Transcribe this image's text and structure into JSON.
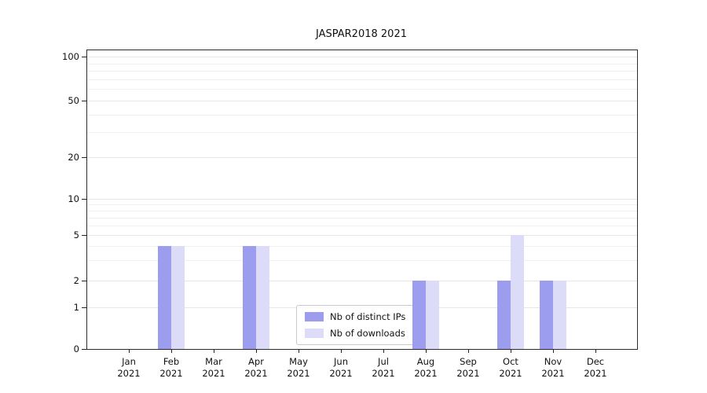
{
  "title": "JASPAR2018 2021",
  "chart_data": {
    "type": "bar",
    "title": "JASPAR2018 2021",
    "categories": [
      "Jan 2021",
      "Feb 2021",
      "Mar 2021",
      "Apr 2021",
      "May 2021",
      "Jun 2021",
      "Jul 2021",
      "Aug 2021",
      "Sep 2021",
      "Oct 2021",
      "Nov 2021",
      "Dec 2021"
    ],
    "series": [
      {
        "name": "Nb of distinct IPs",
        "color": "#9d9def",
        "values": [
          0,
          4,
          0,
          4,
          0,
          0,
          0,
          2,
          0,
          2,
          2,
          0
        ]
      },
      {
        "name": "Nb of downloads",
        "color": "#dcdcf9",
        "values": [
          0,
          4,
          0,
          4,
          0,
          0,
          0,
          2,
          0,
          5,
          2,
          0
        ]
      }
    ],
    "yticks": [
      0,
      1,
      2,
      5,
      10,
      20,
      50,
      100
    ],
    "ylim": [
      0,
      100
    ],
    "yscale": "symlog",
    "grid": "horizontal log minor gridlines",
    "legend_position": "lower center inside plot"
  }
}
